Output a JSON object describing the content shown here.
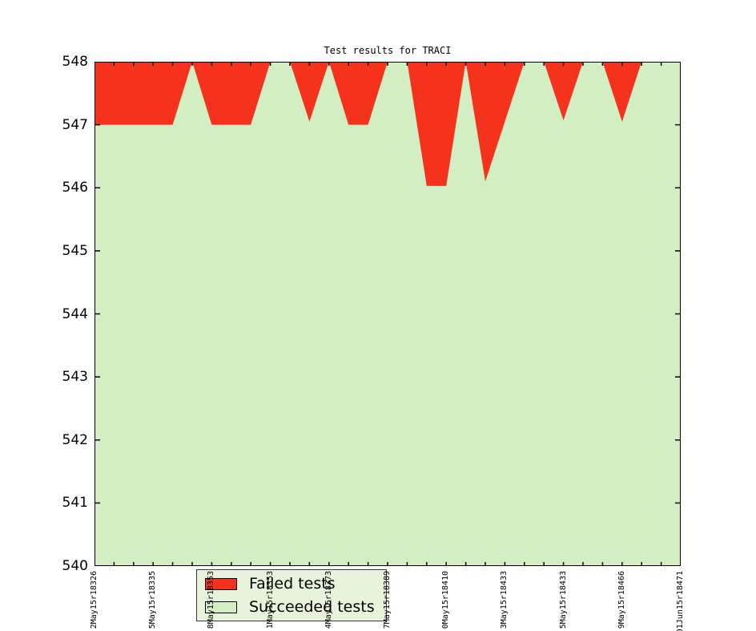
{
  "title": "Test results for TRACI",
  "colors": {
    "failed": "#f5331c",
    "succeeded": "#d4eec3",
    "legend_bg": "#e7f3da",
    "axis": "#000000"
  },
  "legend": {
    "position": "lower left",
    "items": [
      {
        "label": "Failed tests",
        "color_key": "failed"
      },
      {
        "label": "Succeeded tests",
        "color_key": "succeeded"
      }
    ]
  },
  "chart_data": {
    "type": "area",
    "title": "Test results for TRACI",
    "xlabel": "",
    "ylabel": "",
    "ylim": [
      540,
      548
    ],
    "yticks": [
      540,
      541,
      542,
      543,
      544,
      545,
      546,
      547,
      548
    ],
    "grid": false,
    "legend_position": "lower left",
    "total_tests": 548,
    "x_count": 31,
    "x_tick_label_step": 3,
    "x_tick_labels": [
      "2May15r18326",
      "5May15r18335",
      "8May15r18353",
      "1May15r18353",
      "4May15r18373",
      "7May15r18389",
      "0May15r18410",
      "3May15r18433",
      "5May15r18433",
      "9May15r18466",
      "01Jun15r18471"
    ],
    "series": [
      {
        "name": "Succeeded tests",
        "values": [
          547,
          547,
          547,
          547,
          547,
          548,
          547,
          547,
          547,
          548,
          548,
          547.05,
          548,
          547,
          547,
          548,
          548,
          546.03,
          546.03,
          548,
          546.1,
          547.05,
          548,
          548,
          547.07,
          548,
          548,
          547.05,
          548,
          548,
          548
        ]
      },
      {
        "name": "Failed tests",
        "values": [
          1,
          1,
          1,
          1,
          1,
          0,
          1,
          1,
          1,
          0,
          0,
          0.95,
          0,
          1,
          1,
          0,
          0,
          1.97,
          1.97,
          0,
          1.9,
          0.95,
          0,
          0,
          0.93,
          0,
          0,
          0.95,
          0,
          0,
          0
        ]
      }
    ]
  },
  "axes": {
    "x_tick_length": 5,
    "y_tick_length": 7
  }
}
